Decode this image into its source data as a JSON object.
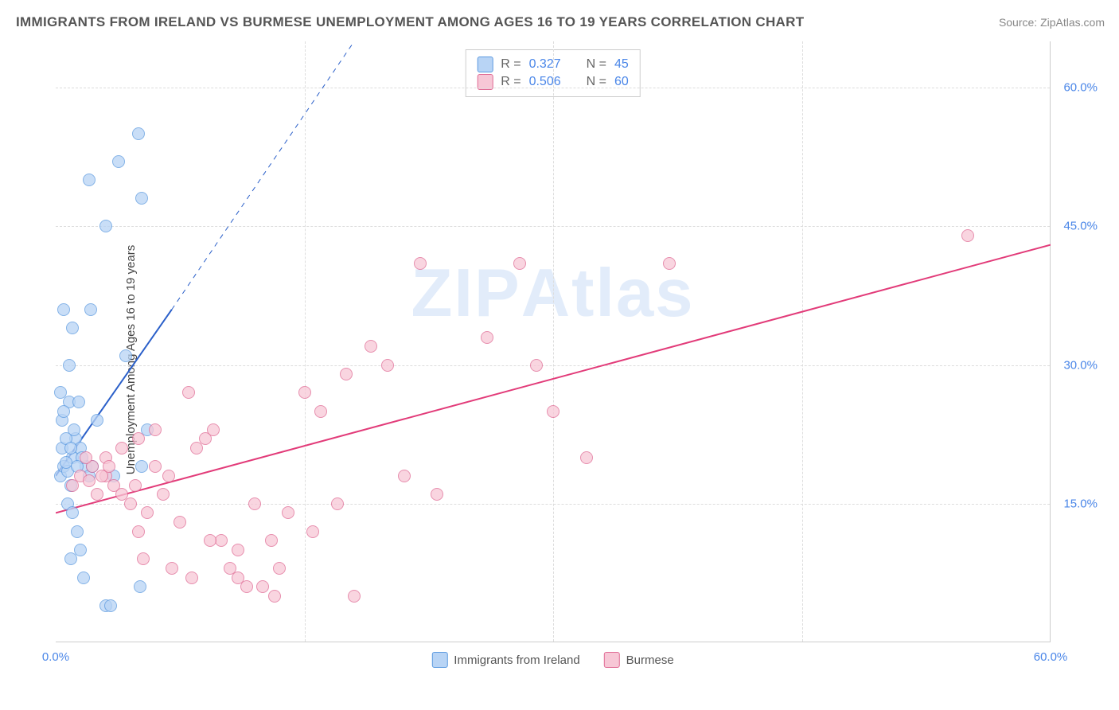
{
  "title": "IMMIGRANTS FROM IRELAND VS BURMESE UNEMPLOYMENT AMONG AGES 16 TO 19 YEARS CORRELATION CHART",
  "source_label": "Source:",
  "source_name": "ZipAtlas.com",
  "watermark_a": "ZIP",
  "watermark_b": "Atlas",
  "ylabel": "Unemployment Among Ages 16 to 19 years",
  "chart": {
    "type": "scatter",
    "xlim": [
      0,
      60
    ],
    "ylim": [
      0,
      65
    ],
    "xtick_vals": [
      0,
      30,
      60
    ],
    "ytick_vals": [
      15,
      30,
      45,
      60
    ],
    "xtick_labels": [
      "0.0%",
      "",
      "60.0%"
    ],
    "ytick_labels": [
      "15.0%",
      "30.0%",
      "45.0%",
      "60.0%"
    ],
    "grid_h": [
      15,
      30,
      45,
      60
    ],
    "grid_v": [
      15,
      30,
      45
    ],
    "grid_color": "#dddddd",
    "tick_color": "#4a86e8",
    "background_color": "#ffffff",
    "point_radius": 8,
    "series": [
      {
        "name": "Immigrants from Ireland",
        "color_fill": "#b8d4f5",
        "color_stroke": "#5c9ae0",
        "R": "0.327",
        "N": "45",
        "trend": {
          "x1": 0,
          "y1": 18,
          "x2": 7,
          "y2": 36,
          "dash_x2": 18,
          "dash_y2": 65,
          "color": "#2a5fc9",
          "width": 2
        },
        "points": [
          [
            0.3,
            18
          ],
          [
            0.5,
            19
          ],
          [
            0.7,
            18.5
          ],
          [
            0.9,
            17
          ],
          [
            1.0,
            20
          ],
          [
            1.2,
            22
          ],
          [
            0.4,
            24
          ],
          [
            0.8,
            26
          ],
          [
            1.5,
            21
          ],
          [
            0.6,
            19.5
          ],
          [
            1.1,
            23
          ],
          [
            0.5,
            25
          ],
          [
            0.3,
            27
          ],
          [
            1.8,
            19
          ],
          [
            2.0,
            18
          ],
          [
            0.7,
            15
          ],
          [
            1.0,
            14
          ],
          [
            1.3,
            12
          ],
          [
            0.9,
            9
          ],
          [
            1.5,
            10
          ],
          [
            1.7,
            7
          ],
          [
            3.0,
            4
          ],
          [
            3.3,
            4
          ],
          [
            2.5,
            24
          ],
          [
            3.5,
            18
          ],
          [
            5.5,
            23
          ],
          [
            4.2,
            31
          ],
          [
            0.5,
            36
          ],
          [
            2.1,
            36
          ],
          [
            3.0,
            45
          ],
          [
            5.2,
            48
          ],
          [
            3.8,
            52
          ],
          [
            2.0,
            50
          ],
          [
            5.0,
            55
          ],
          [
            5.1,
            6
          ],
          [
            1.0,
            34
          ],
          [
            0.8,
            30
          ],
          [
            0.4,
            21
          ],
          [
            1.6,
            20
          ],
          [
            2.2,
            19
          ],
          [
            1.4,
            26
          ],
          [
            0.6,
            22
          ],
          [
            0.9,
            21
          ],
          [
            1.3,
            19
          ],
          [
            5.2,
            19
          ]
        ]
      },
      {
        "name": "Burmese",
        "color_fill": "#f7c7d6",
        "color_stroke": "#e06a94",
        "R": "0.506",
        "N": "60",
        "trend": {
          "x1": 0,
          "y1": 14,
          "x2": 60,
          "y2": 43,
          "color": "#e23b79",
          "width": 2
        },
        "points": [
          [
            1,
            17
          ],
          [
            1.5,
            18
          ],
          [
            2,
            17.5
          ],
          [
            2.5,
            16
          ],
          [
            3,
            18
          ],
          [
            3.5,
            17
          ],
          [
            4,
            16
          ],
          [
            4.5,
            15
          ],
          [
            5,
            12
          ],
          [
            5.5,
            14
          ],
          [
            6,
            19
          ],
          [
            6.5,
            16
          ],
          [
            7,
            8
          ],
          [
            7.5,
            13
          ],
          [
            8,
            27
          ],
          [
            8.5,
            21
          ],
          [
            9,
            22
          ],
          [
            9.5,
            23
          ],
          [
            10,
            11
          ],
          [
            10.5,
            8
          ],
          [
            11,
            10
          ],
          [
            11.5,
            6
          ],
          [
            12,
            15
          ],
          [
            13,
            11
          ],
          [
            13.5,
            8
          ],
          [
            14,
            14
          ],
          [
            15,
            27
          ],
          [
            15.5,
            12
          ],
          [
            16,
            25
          ],
          [
            17,
            15
          ],
          [
            17.5,
            29
          ],
          [
            18,
            5
          ],
          [
            19,
            32
          ],
          [
            20,
            30
          ],
          [
            21,
            18
          ],
          [
            22,
            41
          ],
          [
            23,
            16
          ],
          [
            26,
            33
          ],
          [
            28,
            41
          ],
          [
            29,
            30
          ],
          [
            30,
            25
          ],
          [
            32,
            20
          ],
          [
            37,
            41
          ],
          [
            55,
            44
          ],
          [
            3,
            20
          ],
          [
            4,
            21
          ],
          [
            5,
            22
          ],
          [
            6,
            23
          ],
          [
            2.2,
            19
          ],
          [
            1.8,
            20
          ],
          [
            2.8,
            18
          ],
          [
            3.2,
            19
          ],
          [
            4.8,
            17
          ],
          [
            5.3,
            9
          ],
          [
            6.8,
            18
          ],
          [
            8.2,
            7
          ],
          [
            9.3,
            11
          ],
          [
            11,
            7
          ],
          [
            12.5,
            6
          ],
          [
            13.2,
            5
          ]
        ]
      }
    ]
  },
  "legend_top": {
    "R_label": "R =",
    "N_label": "N ="
  },
  "legend_bottom": [
    {
      "label": "Immigrants from Ireland"
    },
    {
      "label": "Burmese"
    }
  ]
}
